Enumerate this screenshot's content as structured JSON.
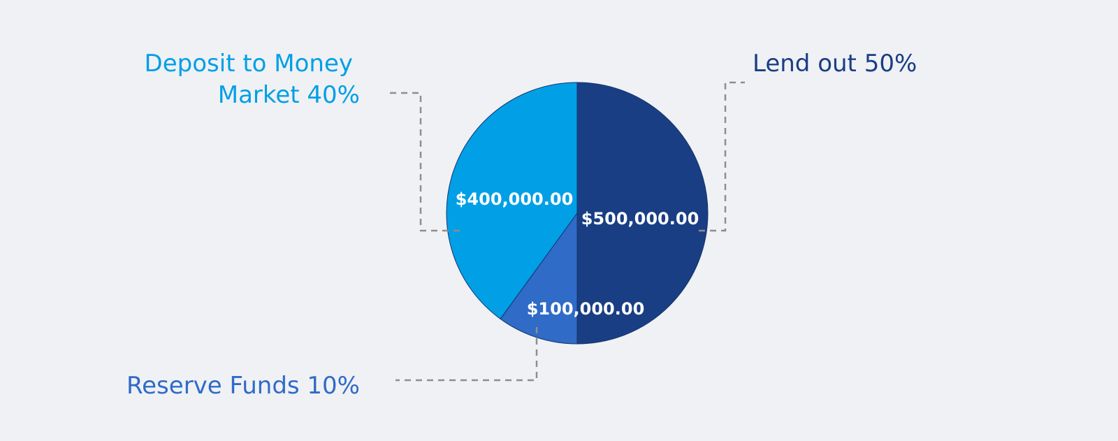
{
  "chart_data": {
    "type": "pie",
    "slices": [
      {
        "label": "Lend out 50%",
        "percent": 50,
        "value": 500000,
        "value_label": "$500,000.00",
        "color": "#1a3e84"
      },
      {
        "label": "Reserve Funds 10%",
        "percent": 10,
        "value": 100000,
        "value_label": "$100,000.00",
        "color": "#2f6bc7"
      },
      {
        "label": "Deposit to Money Market 40%",
        "label_lines": [
          "Deposit to Money",
          "Market 40%"
        ],
        "percent": 40,
        "value": 400000,
        "value_label": "$400,000.00",
        "color": "#009fe6"
      }
    ],
    "start_angle": "12 o'clock",
    "direction": "clockwise",
    "legend": "none",
    "leader_line_color": "#8e8e8e",
    "background_color": "#f0f1f5"
  }
}
